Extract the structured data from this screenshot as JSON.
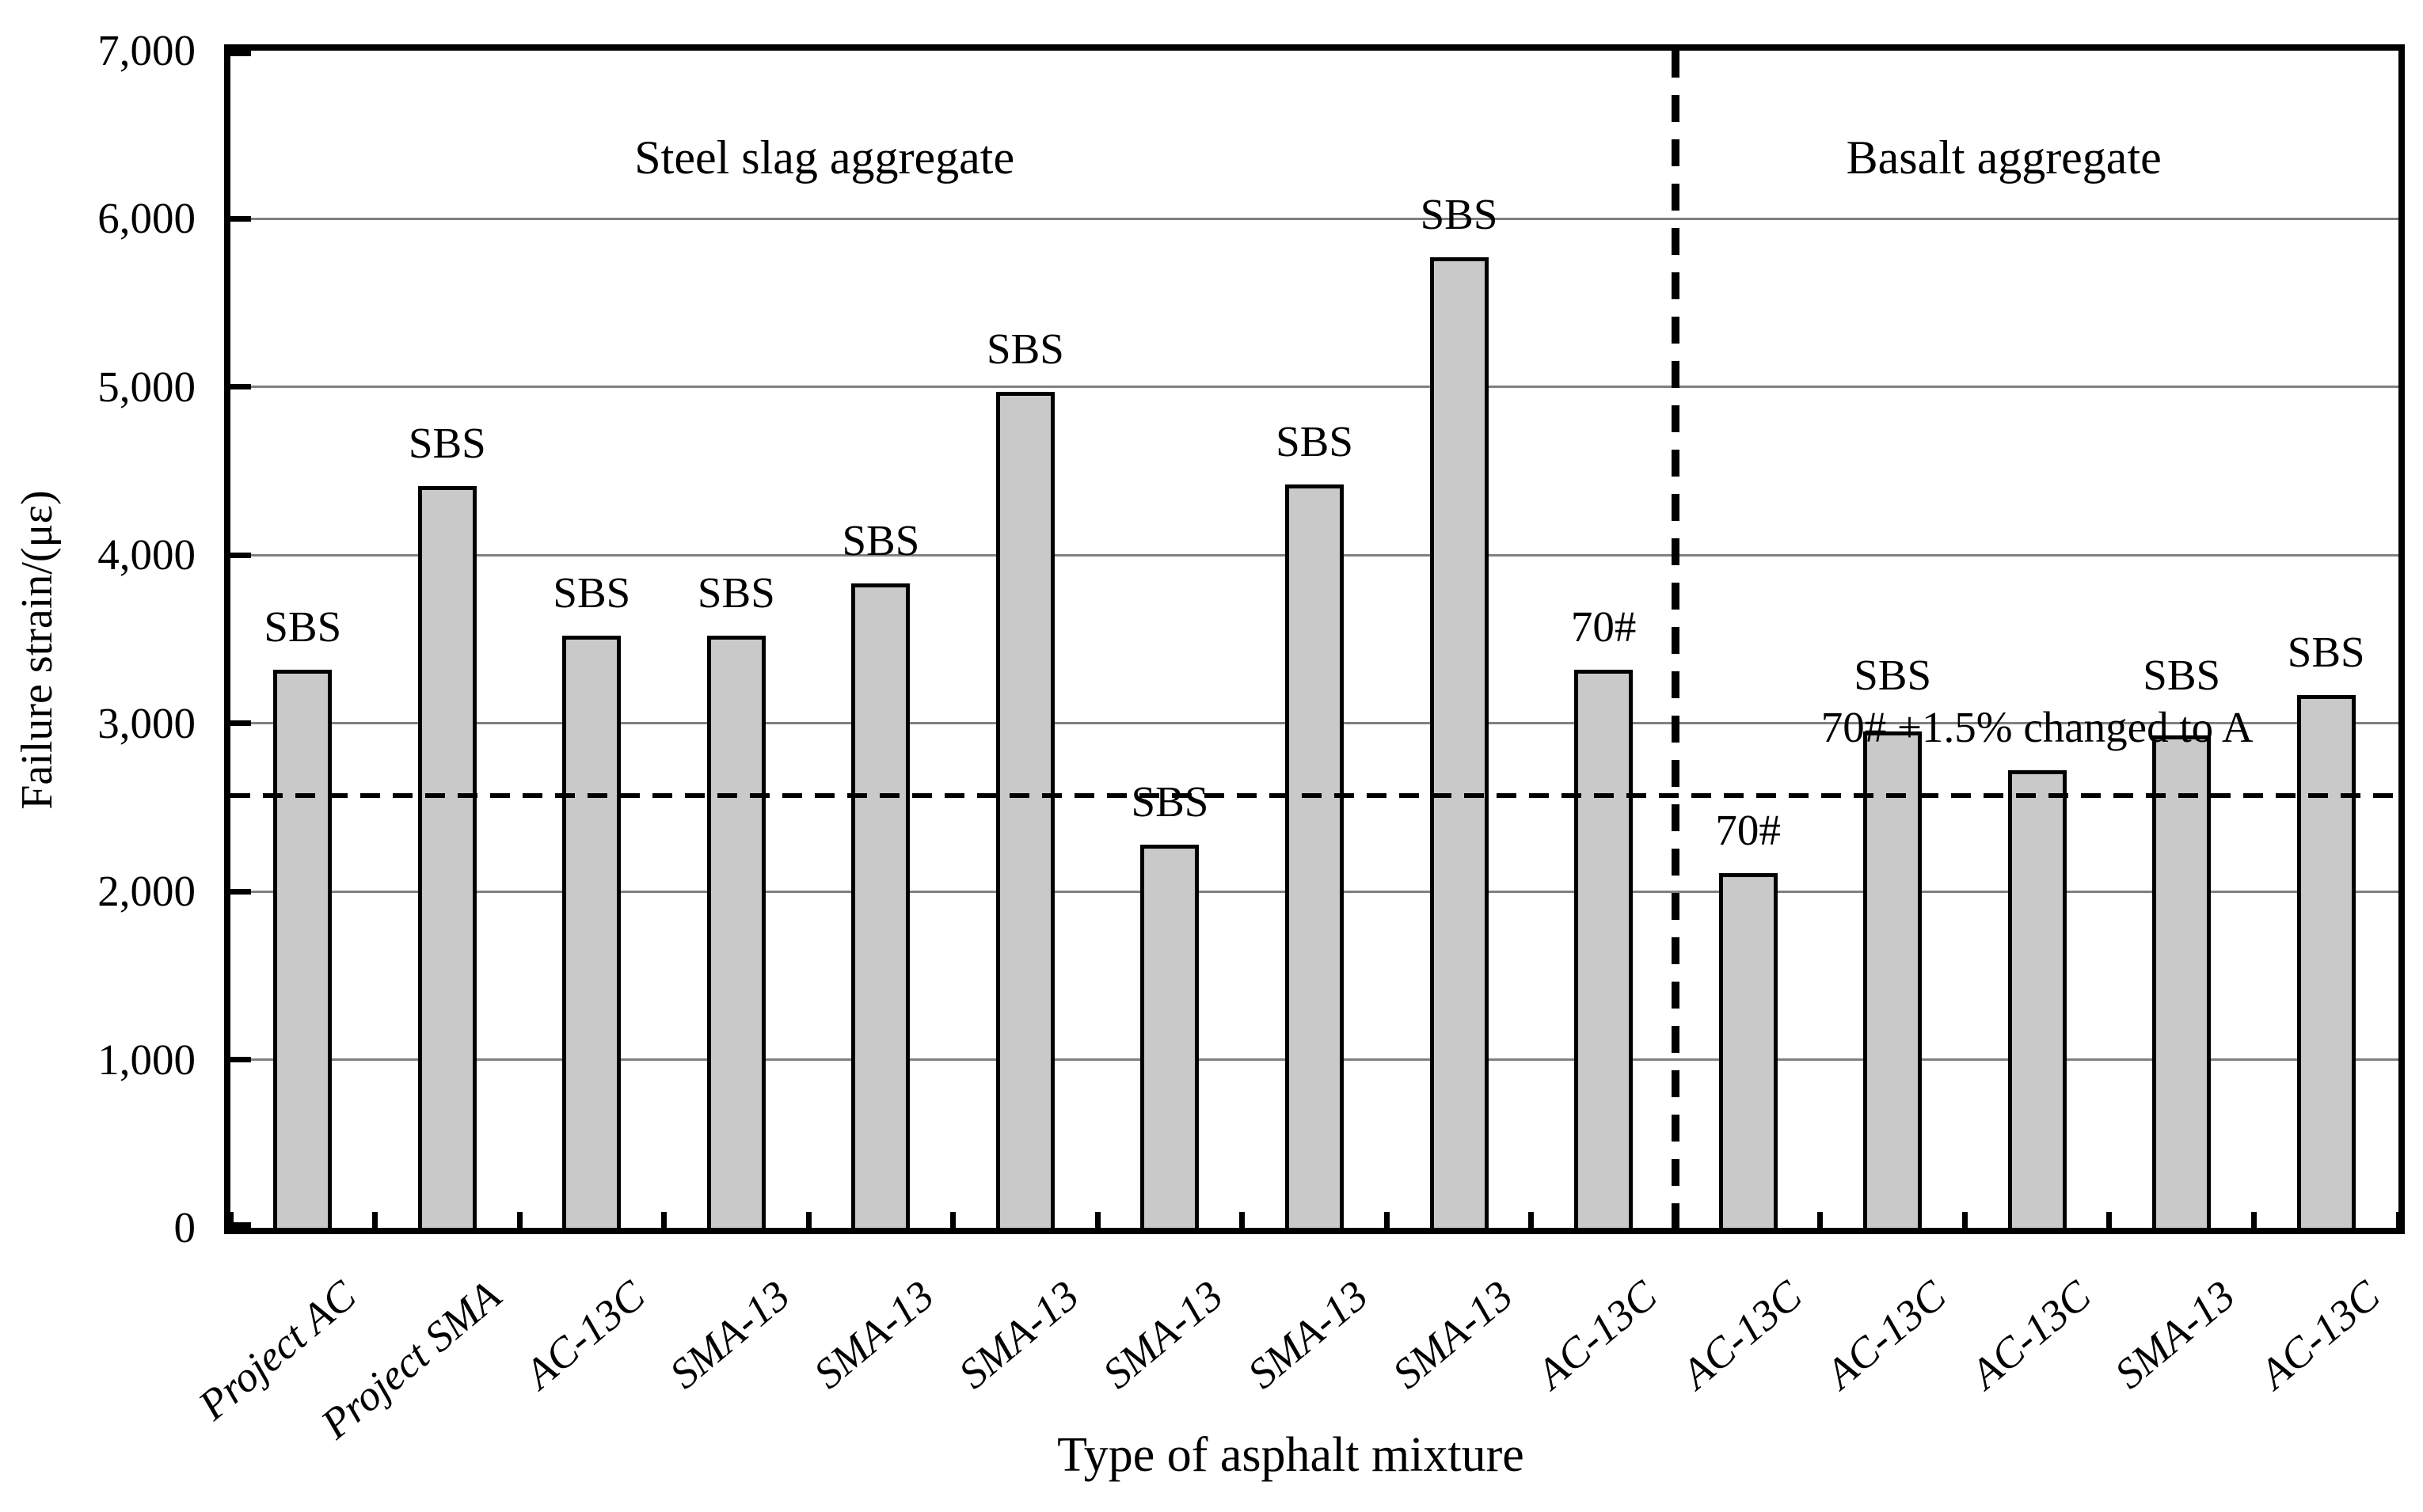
{
  "chart_data": {
    "type": "bar",
    "title": "",
    "xlabel": "Type of asphalt mixture",
    "ylabel": "Failure strain/(με)",
    "ylim": [
      0,
      7000
    ],
    "ytick_interval": 1000,
    "grid": "horizontal-only",
    "legend_position": "none",
    "bar_color": "#c9c9c9",
    "bar_border_color": "#000000",
    "gridline_color": "#808080",
    "ytick_labels": [
      "0",
      "1,000",
      "2,000",
      "3,000",
      "4,000",
      "5,000",
      "6,000",
      "7,000"
    ],
    "categories": [
      "Project AC",
      "Project SMA",
      "AC-13C",
      "SMA-13",
      "SMA-13",
      "SMA-13",
      "SMA-13",
      "SMA-13",
      "SMA-13",
      "AC-13C",
      "AC-13C",
      "AC-13C",
      "AC-13C",
      "SMA-13",
      "AC-13C"
    ],
    "values": [
      3320,
      4410,
      3520,
      3520,
      3830,
      4970,
      2280,
      4420,
      5770,
      3320,
      2110,
      2950,
      2720,
      2930,
      3170
    ],
    "bar_labels": [
      "SBS",
      "SBS",
      "SBS",
      "SBS",
      "SBS",
      "SBS",
      "SBS",
      "SBS",
      "SBS",
      "70#",
      "70#",
      "SBS",
      "70# +1.5% changed to A",
      "SBS",
      "SBS"
    ],
    "sections": [
      {
        "label": "Steel slag aggregate",
        "first_bar_index": 0,
        "last_bar_index": 9
      },
      {
        "label": "Basalt aggregate",
        "first_bar_index": 10,
        "last_bar_index": 14
      }
    ],
    "separator_after_bar_index": 9,
    "reference_line": {
      "value": 2570,
      "style": "dashed"
    }
  }
}
